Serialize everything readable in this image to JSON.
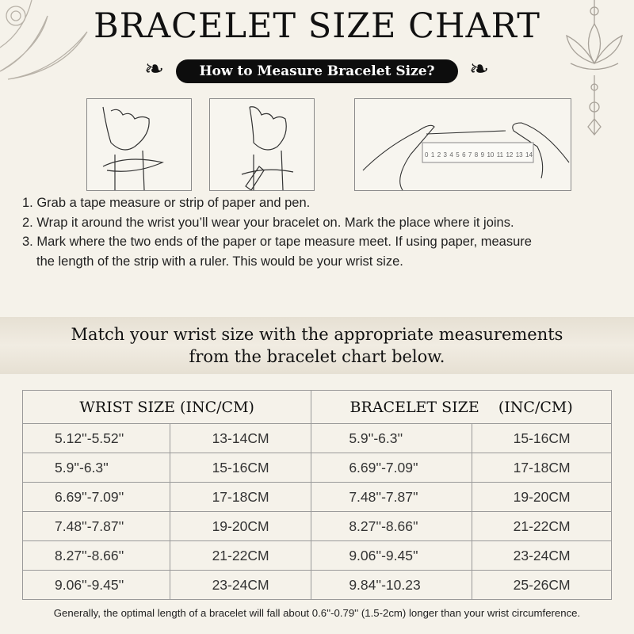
{
  "header": {
    "title": "BRACELET SIZE CHART",
    "subtitle": "How to Measure Bracelet Size?"
  },
  "illustrations": {
    "ruler_numbers": [
      "0",
      "1",
      "2",
      "3",
      "4",
      "5",
      "6",
      "7",
      "8",
      "9",
      "10",
      "11",
      "12",
      "13",
      "14"
    ]
  },
  "steps": [
    "1. Grab a tape measure or strip of paper and pen.",
    "2. Wrap it around the wrist you’ll wear your bracelet on. Mark the place where it joins.",
    "3. Mark where the two ends of the paper or tape measure meet. If using paper, measure",
    "the length of the strip with a ruler. This would be your wrist size."
  ],
  "match": {
    "line1": "Match your wrist size with the appropriate measurements",
    "line2": "from the bracelet chart below."
  },
  "table": {
    "headers": [
      "WRIST SIZE (INC/CM)",
      "BRACELET SIZE    (INC/CM)"
    ],
    "rows": [
      [
        "5.12''-5.52''",
        "13-14CM",
        "5.9''-6.3''",
        "15-16CM"
      ],
      [
        "5.9''-6.3''",
        "15-16CM",
        "6.69''-7.09''",
        "17-18CM"
      ],
      [
        "6.69''-7.09''",
        "17-18CM",
        "7.48''-7.87''",
        "19-20CM"
      ],
      [
        "7.48''-7.87''",
        "19-20CM",
        "8.27''-8.66''",
        "21-22CM"
      ],
      [
        "8.27''-8.66''",
        "21-22CM",
        "9.06''-9.45''",
        "23-24CM"
      ],
      [
        "9.06''-9.45''",
        "23-24CM",
        "9.84''-10.23",
        "25-26CM"
      ]
    ]
  },
  "footnote": "Generally, the optimal length of a bracelet will fall about 0.6''-0.79'' (1.5-2cm) longer than your wrist circumference.",
  "colors": {
    "background": "#f5f2ea",
    "pill": "#0d0d0d",
    "border": "#9a9a9a"
  }
}
